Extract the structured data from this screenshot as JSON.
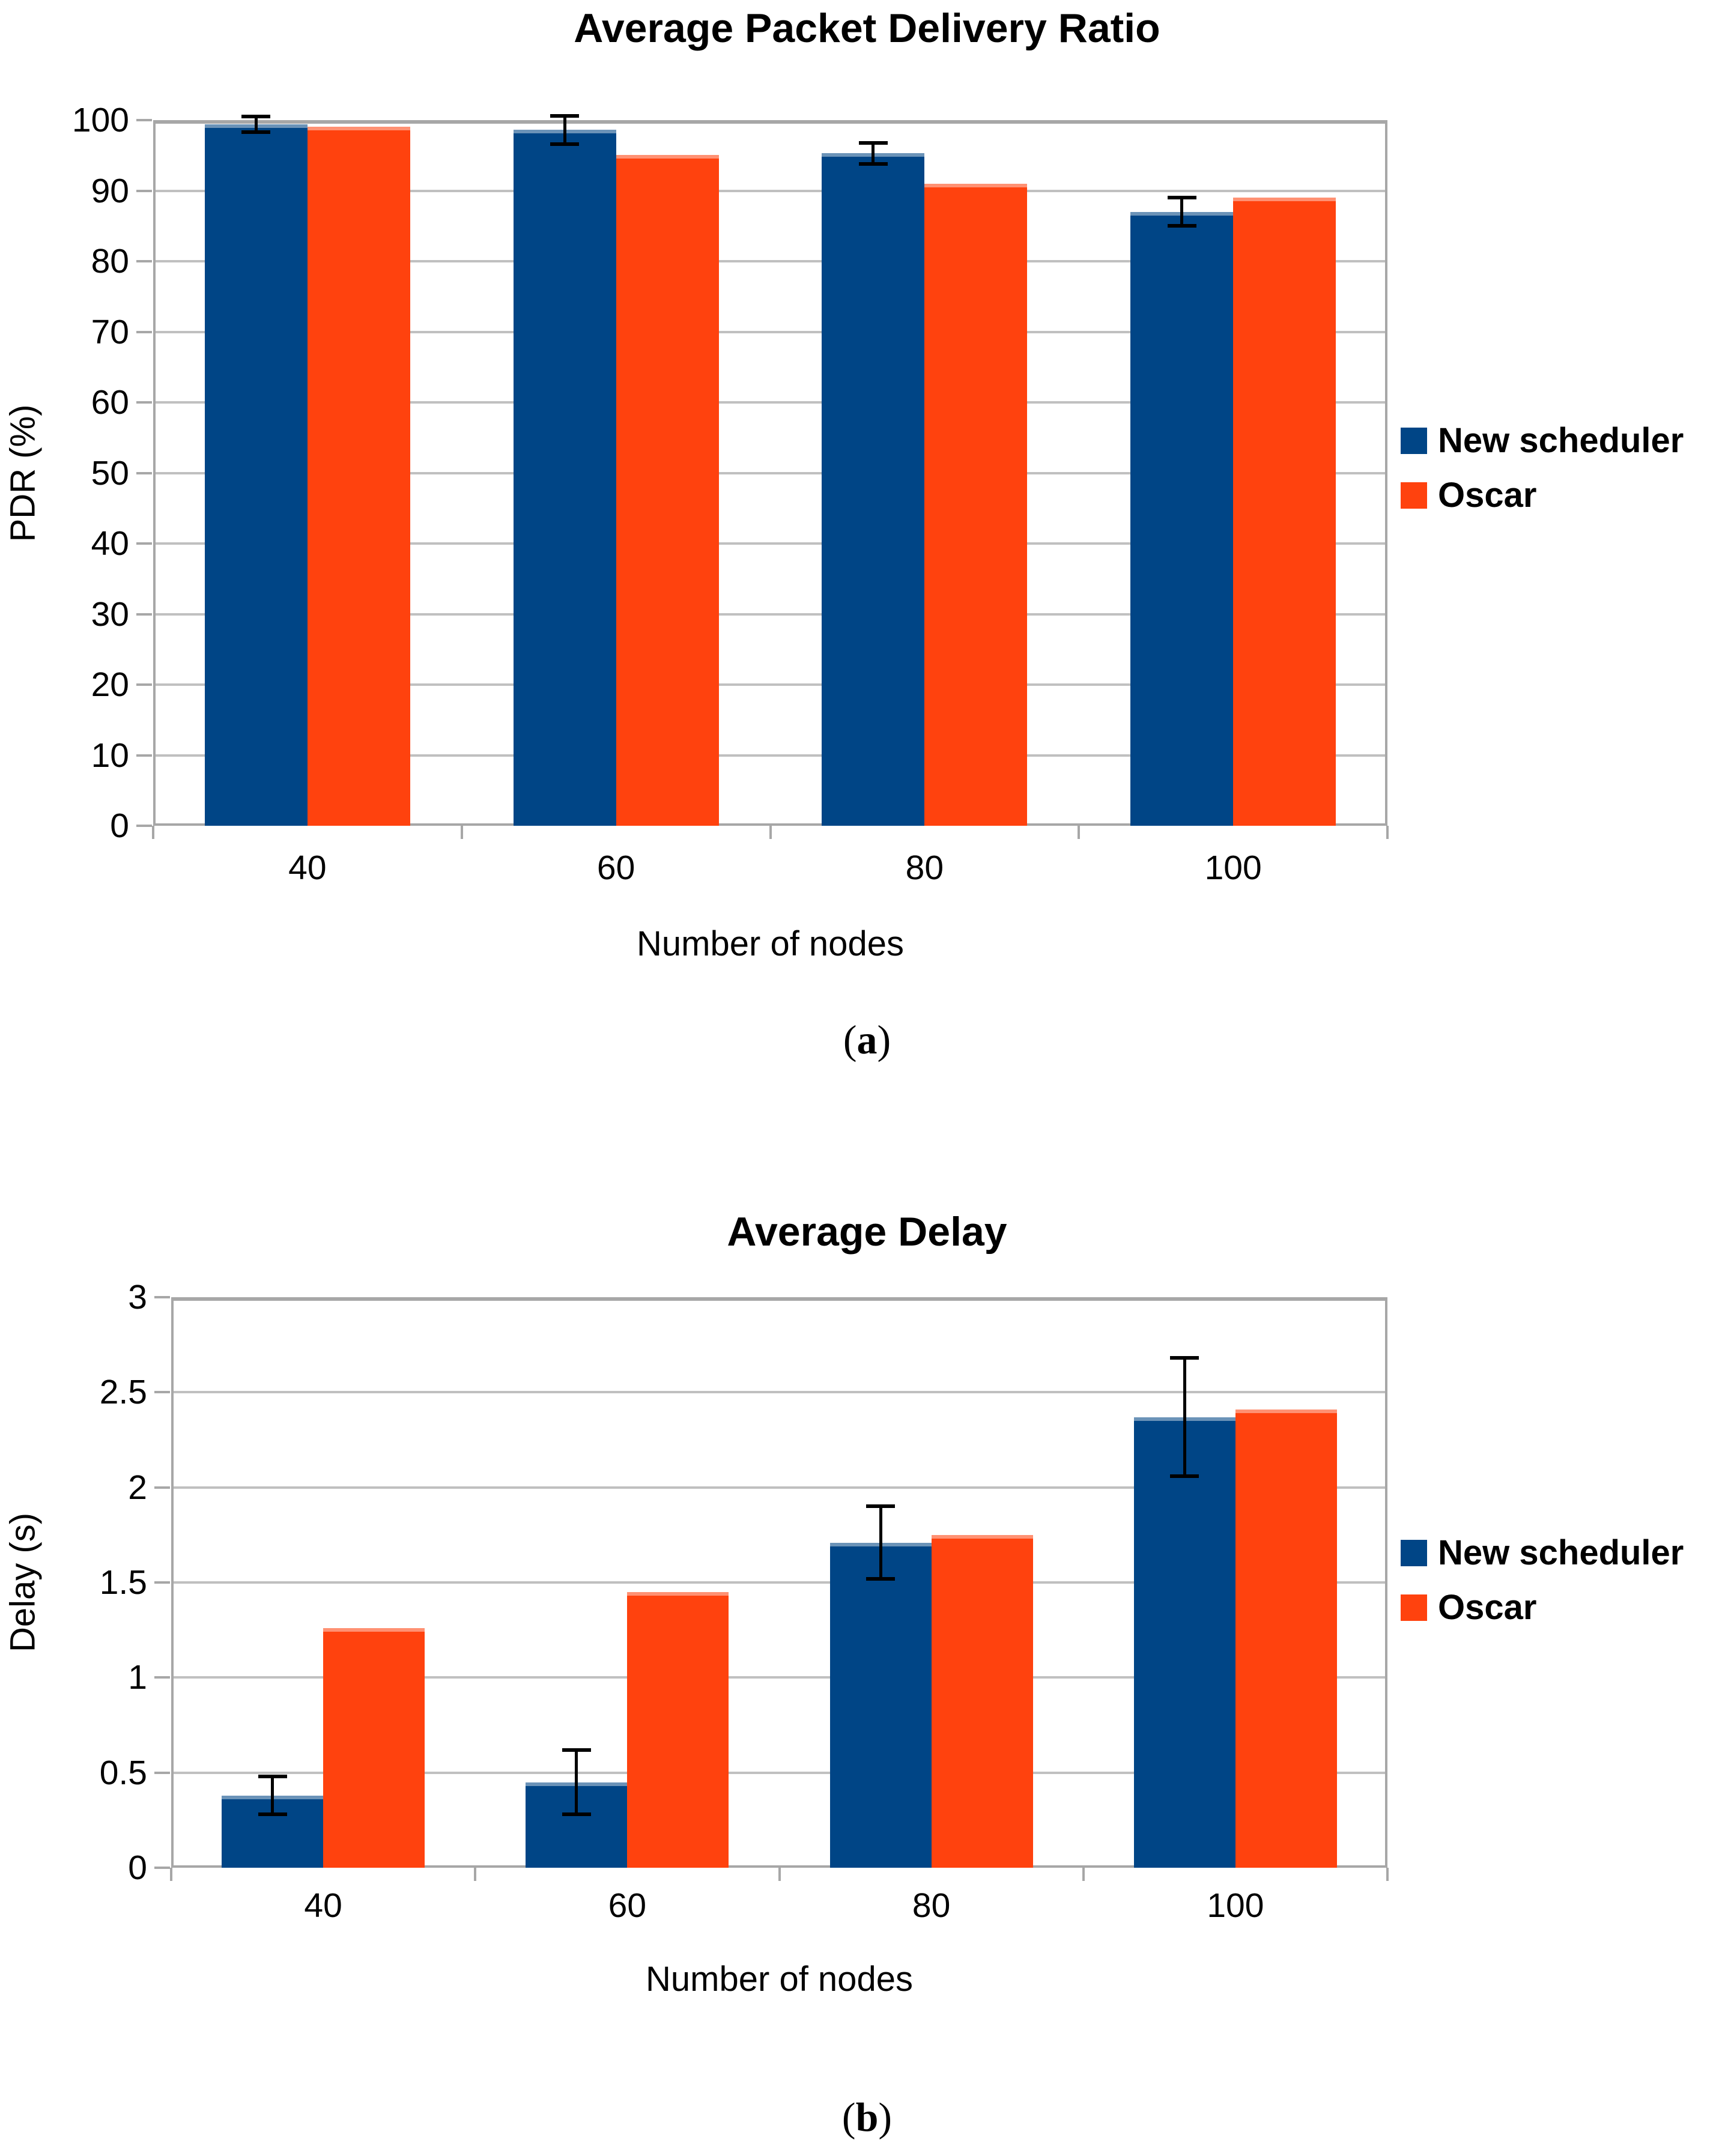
{
  "figure": {
    "background": "#FFFFFF",
    "grid_color": "#C0C0C0",
    "axis_color": "#A7A7A7",
    "error_bar_color": "#000000"
  },
  "legend": {
    "items": [
      {
        "label": "New scheduler",
        "color": "#004586"
      },
      {
        "label": "Oscar",
        "color": "#FF420E"
      }
    ]
  },
  "chart_data": [
    {
      "type": "bar",
      "title": "Average Packet Delivery Ratio",
      "xlabel": "Number of nodes",
      "ylabel": "PDR (%)",
      "ylim": [
        0,
        100
      ],
      "ytick_step": 10,
      "yticks": [
        "0",
        "10",
        "20",
        "30",
        "40",
        "50",
        "60",
        "70",
        "80",
        "90",
        "100"
      ],
      "grid": true,
      "legend_position": "right",
      "categories": [
        "40",
        "60",
        "80",
        "100"
      ],
      "series": [
        {
          "name": "New scheduler",
          "color": "#004586",
          "values": [
            99.4,
            98.6,
            95.3,
            87.0
          ],
          "error": [
            1.1,
            2.0,
            1.5,
            2.0
          ]
        },
        {
          "name": "Oscar",
          "color": "#FF420E",
          "values": [
            99.1,
            95.1,
            91.0,
            89.0
          ],
          "error": [
            0,
            0,
            0,
            0
          ]
        }
      ],
      "paren_open": "(",
      "sublabel": "a",
      "paren_close": ")"
    },
    {
      "type": "bar",
      "title": "Average Delay",
      "xlabel": "Number of nodes",
      "ylabel": "Delay (s)",
      "ylim": [
        0,
        3
      ],
      "ytick_step": 0.5,
      "yticks": [
        "0",
        "0.5",
        "1",
        "1.5",
        "2",
        "2.5",
        "3"
      ],
      "grid": true,
      "legend_position": "right",
      "categories": [
        "40",
        "60",
        "80",
        "100"
      ],
      "series": [
        {
          "name": "New scheduler",
          "color": "#004586",
          "values": [
            0.38,
            0.45,
            1.71,
            2.37
          ],
          "error": [
            0.1,
            0.17,
            0.19,
            0.31
          ]
        },
        {
          "name": "Oscar",
          "color": "#FF420E",
          "values": [
            1.26,
            1.45,
            1.75,
            2.41
          ],
          "error": [
            0,
            0,
            0,
            0
          ]
        }
      ],
      "paren_open": "(",
      "sublabel": "b",
      "paren_close": ")"
    }
  ]
}
